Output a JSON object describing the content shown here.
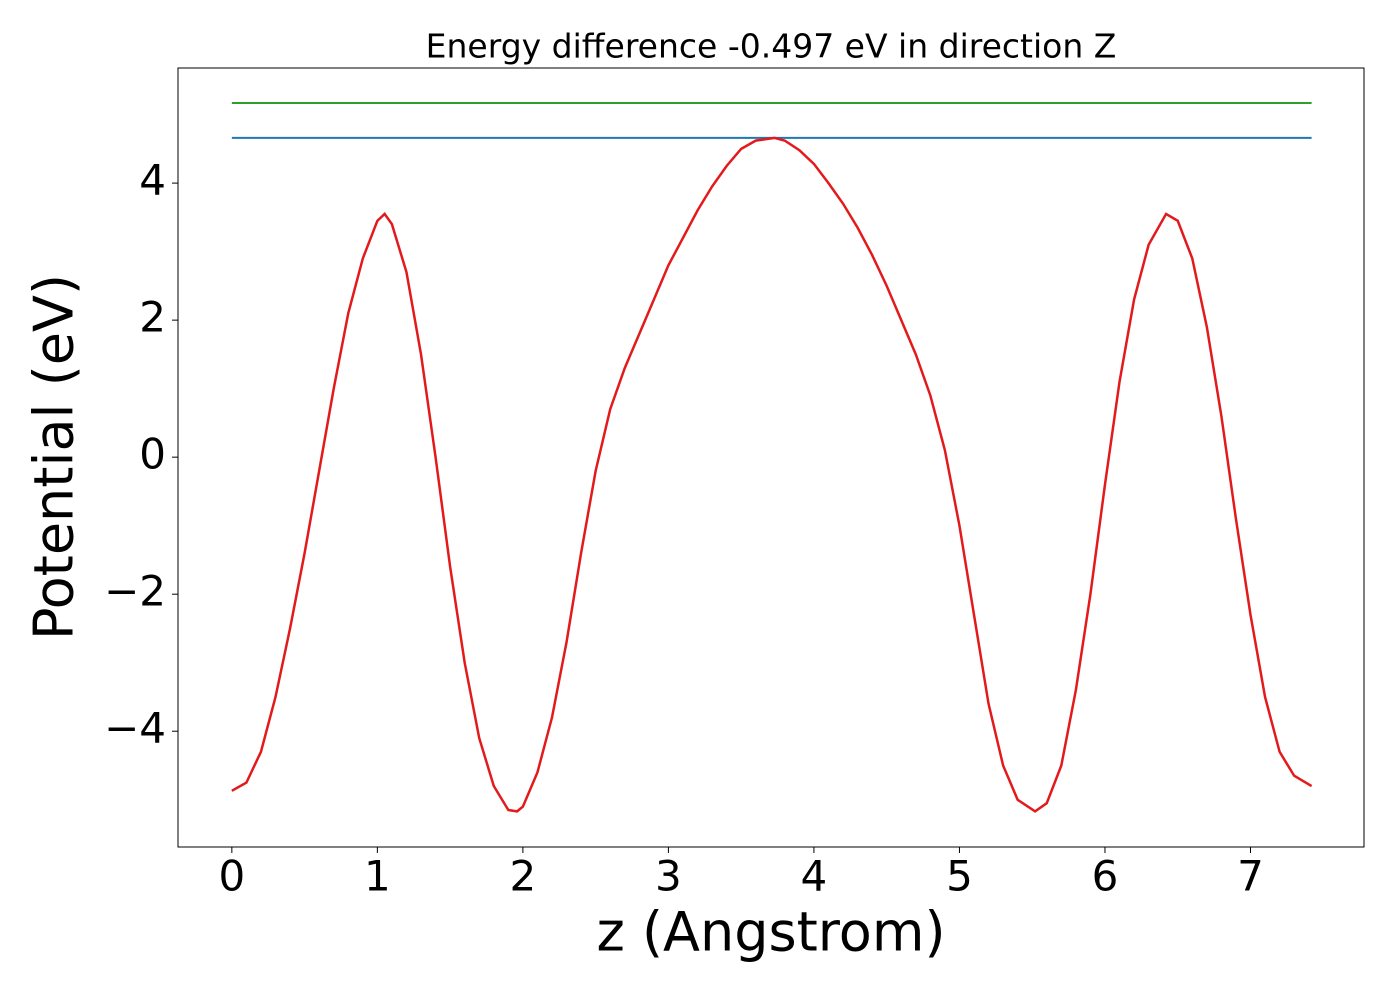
{
  "chart_data": {
    "type": "line",
    "title": "Energy difference -0.497 eV in direction Z",
    "x_label": "z (Angstrom)",
    "y_label": "Potential (eV)",
    "xlim": [
      -0.37,
      7.78
    ],
    "ylim": [
      -5.69,
      5.68
    ],
    "xticks": [
      0,
      1,
      2,
      3,
      4,
      5,
      6,
      7
    ],
    "yticks": [
      {
        "value": -4,
        "label": "−4"
      },
      {
        "value": -2,
        "label": "−2"
      },
      0,
      2,
      4
    ],
    "series": [
      {
        "color": "#2ca02c",
        "x": [
          0,
          7.42
        ],
        "values": [
          5.17,
          5.17
        ]
      },
      {
        "color": "#1f77b4",
        "x": [
          0,
          7.42
        ],
        "values": [
          4.66,
          4.66
        ]
      },
      {
        "color": "#e31a1c",
        "x": [
          0,
          0.1,
          0.2,
          0.3,
          0.4,
          0.5,
          0.6,
          0.7,
          0.8,
          0.9,
          1.0,
          1.05,
          1.1,
          1.2,
          1.3,
          1.4,
          1.5,
          1.6,
          1.7,
          1.8,
          1.9,
          1.96,
          2.0,
          2.1,
          2.2,
          2.3,
          2.4,
          2.5,
          2.6,
          2.7,
          2.8,
          2.9,
          3.0,
          3.1,
          3.2,
          3.3,
          3.4,
          3.5,
          3.6,
          3.73,
          3.8,
          3.9,
          4.0,
          4.1,
          4.2,
          4.3,
          4.4,
          4.5,
          4.6,
          4.7,
          4.8,
          4.9,
          5.0,
          5.1,
          5.2,
          5.3,
          5.4,
          5.52,
          5.6,
          5.7,
          5.8,
          5.9,
          6.0,
          6.1,
          6.2,
          6.3,
          6.42,
          6.5,
          6.6,
          6.7,
          6.8,
          6.9,
          7.0,
          7.1,
          7.2,
          7.3,
          7.42
        ],
        "values": [
          -4.87,
          -4.75,
          -4.3,
          -3.5,
          -2.5,
          -1.4,
          -0.2,
          1.0,
          2.1,
          2.9,
          3.45,
          3.55,
          3.4,
          2.7,
          1.5,
          0,
          -1.6,
          -3.0,
          -4.1,
          -4.8,
          -5.15,
          -5.17,
          -5.1,
          -4.6,
          -3.8,
          -2.7,
          -1.4,
          -0.2,
          0.7,
          1.3,
          1.8,
          2.3,
          2.8,
          3.2,
          3.6,
          3.95,
          4.25,
          4.5,
          4.62,
          4.66,
          4.62,
          4.48,
          4.28,
          4.0,
          3.7,
          3.35,
          2.95,
          2.5,
          2.0,
          1.5,
          0.9,
          0.1,
          -1.0,
          -2.3,
          -3.6,
          -4.5,
          -5.0,
          -5.17,
          -5.05,
          -4.5,
          -3.4,
          -2.0,
          -0.4,
          1.1,
          2.3,
          3.1,
          3.55,
          3.45,
          2.9,
          1.9,
          0.6,
          -0.9,
          -2.3,
          -3.5,
          -4.3,
          -4.65,
          -4.8
        ]
      }
    ]
  }
}
